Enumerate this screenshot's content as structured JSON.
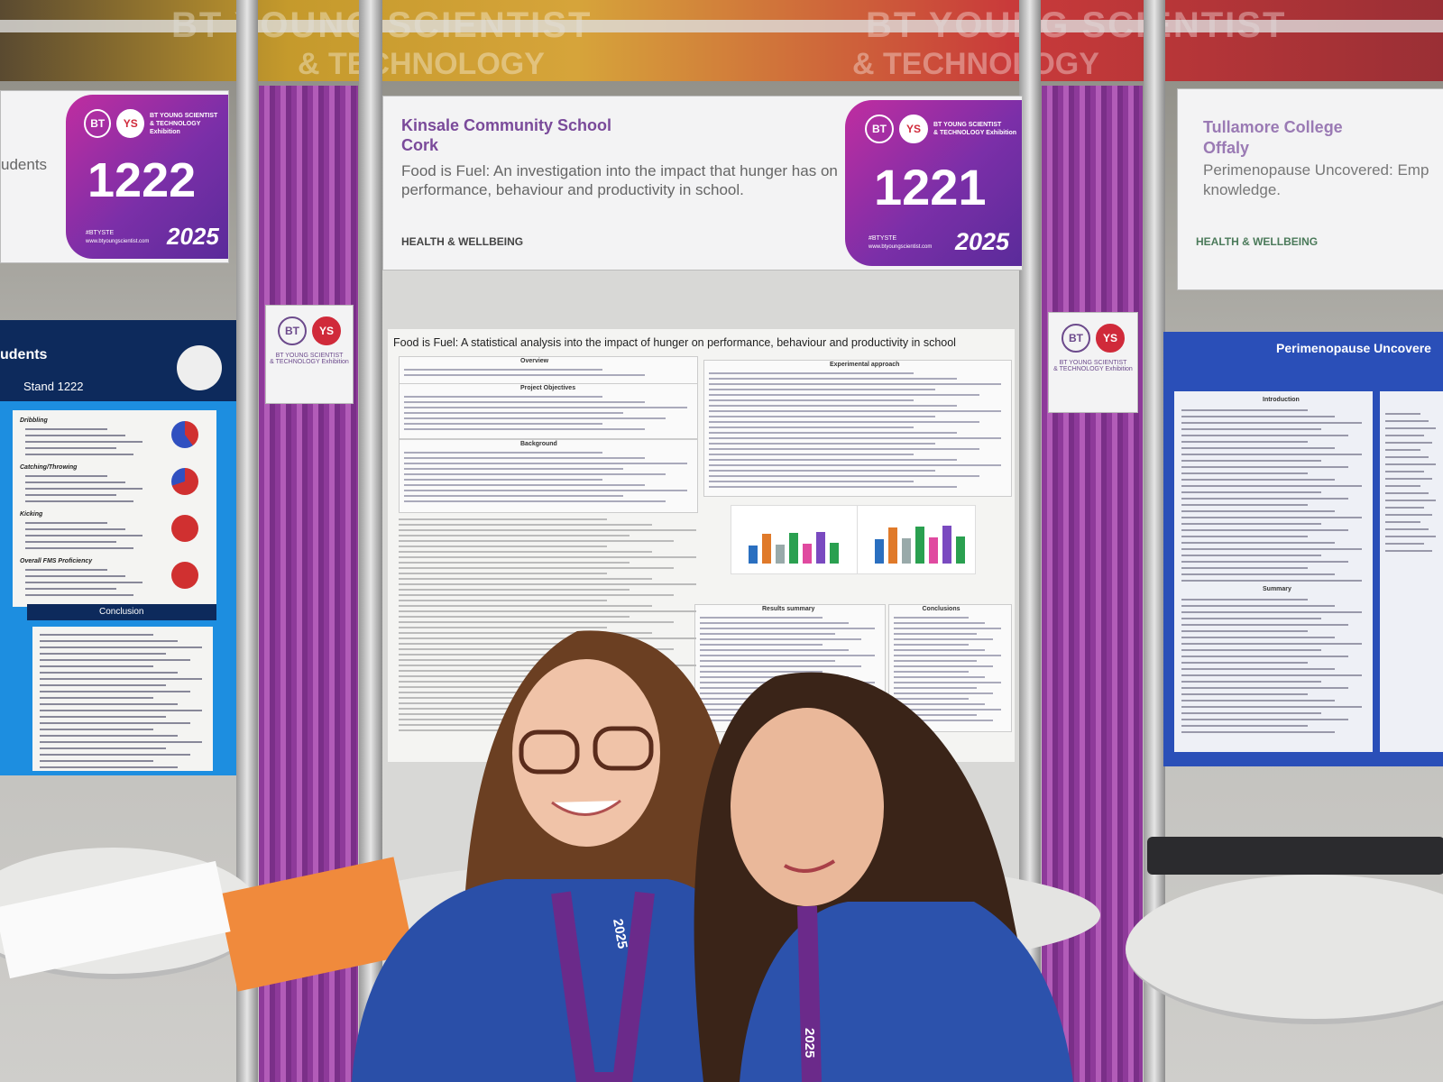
{
  "banner": {
    "line1": "BT YOUNG SCIENTIST",
    "line2": "& TECHNOLOGY"
  },
  "left_sign": {
    "school_fragment": "udents",
    "logo_bt": "BT",
    "logo_ys": "YS",
    "brand": "BT YOUNG SCIENTIST",
    "brand2": "& TECHNOLOGY Exhibition",
    "stand_number": "1222",
    "hashtag": "#BTYSTE",
    "website": "www.btyoungscientist.com",
    "year": "2025"
  },
  "center_sign": {
    "school": "Kinsale Community School",
    "county": "Cork",
    "project_title": "Food is Fuel: An investigation into the impact that hunger has on performance, behaviour and productivity in school.",
    "category": "HEALTH & WELLBEING",
    "logo_bt": "BT",
    "logo_ys": "YS",
    "brand": "BT YOUNG SCIENTIST",
    "brand2": "& TECHNOLOGY Exhibition",
    "stand_number": "1221",
    "hashtag": "#BTYSTE",
    "website": "www.btyoungscientist.com",
    "year": "2025"
  },
  "right_sign": {
    "school": "Tullamore College",
    "county": "Offaly",
    "project_title": "Perimenopause Uncovered: Emp",
    "project_title2": "knowledge.",
    "category": "HEALTH & WELLBEING"
  },
  "pillar_logos": [
    {
      "bt": "BT",
      "ys": "YS",
      "brand": "BT YOUNG SCIENTIST",
      "brand2": "& TECHNOLOGY Exhibition"
    },
    {
      "bt": "BT",
      "ys": "YS",
      "brand": "BT YOUNG SCIENTIST",
      "brand2": "& TECHNOLOGY Exhibition"
    }
  ],
  "left_poster": {
    "title": "udents",
    "stand": "Stand 1222",
    "sections": [
      "Dribbling",
      "Catching/Throwing",
      "Kicking",
      "Overall FMS Proficiency"
    ],
    "conclusion": "Conclusion"
  },
  "center_poster": {
    "title": "Food is Fuel: A statistical analysis into the impact of hunger on performance, behaviour and productivity in school",
    "sections": [
      "Overview",
      "Project Objectives",
      "Background",
      "Experimental approach",
      "Results summary",
      "Conclusions"
    ]
  },
  "right_poster": {
    "title": "Perimenopause Uncovere",
    "sections": [
      "Introduction",
      "Summary"
    ]
  },
  "lanyards": [
    "2025",
    "2025"
  ]
}
